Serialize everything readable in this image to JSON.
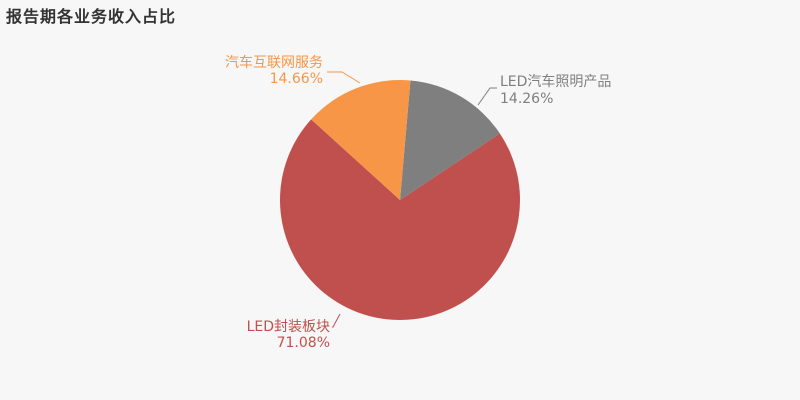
{
  "chart_data": {
    "type": "pie",
    "title": "报告期各业务收入占比",
    "slices": [
      {
        "name": "LED汽车照明产品",
        "value": 14.26,
        "label": "14.26%",
        "color": "#7f7f7f"
      },
      {
        "name": "LED封装板块",
        "value": 71.08,
        "label": "71.08%",
        "color": "#c0504d"
      },
      {
        "name": "汽车互联网服务",
        "value": 14.66,
        "label": "14.66%",
        "color": "#f79646"
      }
    ],
    "start_angle_deg": 5
  }
}
